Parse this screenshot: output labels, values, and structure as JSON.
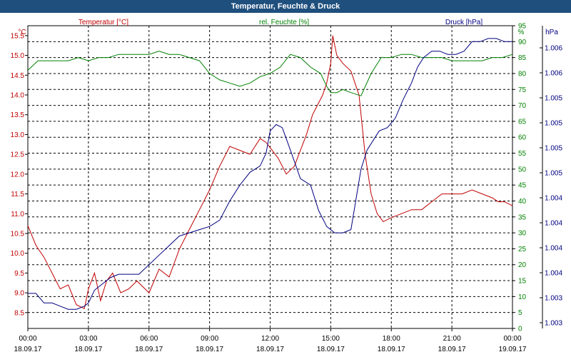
{
  "window": {
    "title": "Temperatur, Feuchte & Druck"
  },
  "chart_data": {
    "type": "line",
    "title": "Temperatur, Feuchte & Druck",
    "x_labels": [
      {
        "time": "00:00",
        "date": "18.09.17"
      },
      {
        "time": "03:00",
        "date": "18.09.17"
      },
      {
        "time": "06:00",
        "date": "18.09.17"
      },
      {
        "time": "09:00",
        "date": "18.09.17"
      },
      {
        "time": "12:00",
        "date": "18.09.17"
      },
      {
        "time": "15:00",
        "date": "18.09.17"
      },
      {
        "time": "18:00",
        "date": "18.09.17"
      },
      {
        "time": "21:00",
        "date": "18.09.17"
      },
      {
        "time": "00:00",
        "date": "19.09.17"
      }
    ],
    "xlim_hours": [
      0,
      24
    ],
    "axes": {
      "temperature": {
        "label": "Temperatur [°C]",
        "unit": "°C",
        "color": "#c00000",
        "ylim": [
          8.1,
          15.75
        ],
        "ticks": [
          "8.5",
          "9.0",
          "9.5",
          "10.0",
          "10.5",
          "11.0",
          "11.5",
          "12.0",
          "12.5",
          "13.0",
          "13.5",
          "14.0",
          "14.5",
          "15.0",
          "15.5"
        ]
      },
      "humidity": {
        "label": "rel. Feuchte [%]",
        "unit": "%",
        "color": "#008000",
        "ylim": [
          0,
          95
        ],
        "ticks": [
          "0",
          "5",
          "10",
          "15",
          "20",
          "25",
          "30",
          "35",
          "40",
          "45",
          "50",
          "55",
          "60",
          "65",
          "70",
          "75",
          "80",
          "85",
          "90",
          "95"
        ]
      },
      "pressure": {
        "label": "Druck [hPa]",
        "unit": "hPa",
        "color": "#000080",
        "ticks": [
          "1.003",
          "1.003",
          "1.004",
          "1.004",
          "1.004",
          "1.004",
          "1.005",
          "1.005",
          "1.005",
          "1.005",
          "1.006",
          "1.006"
        ]
      }
    },
    "series": [
      {
        "name": "Temperatur [°C]",
        "axis": "temperature",
        "color": "#c00000",
        "x": [
          0,
          0.4,
          0.8,
          1.2,
          1.6,
          2.0,
          2.4,
          2.8,
          3.0,
          3.3,
          3.6,
          3.9,
          4.2,
          4.6,
          5.0,
          5.4,
          6.0,
          6.5,
          7.0,
          7.5,
          8.0,
          8.5,
          9.0,
          9.5,
          10.0,
          10.5,
          11.0,
          11.5,
          11.8,
          12.1,
          12.4,
          12.8,
          13.2,
          13.5,
          13.8,
          14.1,
          14.4,
          14.6,
          14.8,
          15.0,
          15.1,
          15.3,
          15.6,
          16.0,
          16.4,
          16.7,
          17.0,
          17.3,
          17.6,
          18.0,
          18.5,
          19.0,
          19.5,
          20.0,
          20.5,
          21.0,
          21.5,
          22.0,
          22.5,
          23.0,
          23.3,
          23.6,
          24.0
        ],
        "values": [
          10.7,
          10.2,
          9.9,
          9.5,
          9.1,
          9.2,
          8.7,
          8.6,
          9.1,
          9.5,
          8.8,
          9.3,
          9.5,
          9.0,
          9.1,
          9.3,
          9.0,
          9.6,
          9.4,
          10.1,
          10.6,
          11.1,
          11.6,
          12.2,
          12.7,
          12.6,
          12.5,
          12.9,
          12.8,
          12.6,
          12.4,
          12.0,
          12.2,
          12.6,
          13.0,
          13.5,
          13.8,
          14.0,
          14.3,
          14.8,
          15.5,
          15.0,
          14.8,
          14.6,
          14.0,
          12.5,
          11.5,
          11.0,
          10.8,
          10.9,
          11.0,
          11.1,
          11.1,
          11.3,
          11.5,
          11.5,
          11.5,
          11.6,
          11.5,
          11.4,
          11.3,
          11.3,
          11.2
        ]
      },
      {
        "name": "rel. Feuchte [%]",
        "axis": "humidity",
        "color": "#008000",
        "x": [
          0,
          0.5,
          1.0,
          1.5,
          2.0,
          2.5,
          3.0,
          3.5,
          4.0,
          4.5,
          5.0,
          5.5,
          6.0,
          6.5,
          7.0,
          7.5,
          8.0,
          8.5,
          9.0,
          9.5,
          10.0,
          10.5,
          11.0,
          11.5,
          12.0,
          12.5,
          13.0,
          13.5,
          14.0,
          14.5,
          14.8,
          15.0,
          15.3,
          15.6,
          16.0,
          16.5,
          17.0,
          17.5,
          18.0,
          18.5,
          19.0,
          19.5,
          20.0,
          20.5,
          21.0,
          21.5,
          22.0,
          22.5,
          23.0,
          23.5,
          24.0
        ],
        "values": [
          81,
          84,
          84,
          84,
          84,
          85,
          84,
          85,
          85,
          86,
          86,
          86,
          86,
          87,
          86,
          86,
          85,
          84,
          80,
          78,
          77,
          76,
          77,
          79,
          80,
          82,
          86,
          85,
          82,
          80,
          76,
          74,
          74,
          75,
          74,
          73,
          80,
          85,
          85,
          86,
          86,
          85,
          85,
          85,
          84,
          84,
          84,
          84,
          85,
          85,
          86
        ]
      },
      {
        "name": "Druck [hPa]",
        "axis": "pressure",
        "color": "#000080",
        "x": [
          0,
          0.4,
          0.8,
          1.2,
          1.6,
          2.0,
          2.4,
          2.8,
          3.0,
          3.3,
          3.7,
          4.1,
          4.5,
          5.0,
          5.5,
          6.0,
          6.5,
          7.0,
          7.5,
          8.0,
          8.5,
          9.0,
          9.5,
          10.0,
          10.5,
          11.0,
          11.5,
          11.8,
          12.0,
          12.3,
          12.6,
          13.0,
          13.5,
          14.0,
          14.4,
          14.8,
          15.2,
          15.6,
          16.0,
          16.5,
          16.8,
          17.1,
          17.4,
          17.8,
          18.2,
          18.6,
          19.0,
          19.3,
          19.6,
          20.0,
          20.4,
          20.8,
          21.2,
          21.6,
          22.0,
          22.4,
          22.8,
          23.2,
          23.6,
          24.0
        ],
        "values_on_humidity_scale": [
          11,
          11,
          8,
          8,
          7,
          6,
          6,
          7,
          8,
          12,
          14,
          16,
          17,
          17,
          17,
          20,
          23,
          26,
          29,
          30,
          31,
          32,
          34,
          40,
          45,
          49,
          51,
          55,
          62,
          64,
          63,
          56,
          47,
          45,
          37,
          32,
          30,
          30,
          31,
          50,
          56,
          59,
          62,
          63,
          66,
          72,
          77,
          82,
          85,
          87,
          87,
          86,
          86,
          87,
          90,
          90,
          91,
          91,
          90,
          90
        ]
      }
    ]
  }
}
